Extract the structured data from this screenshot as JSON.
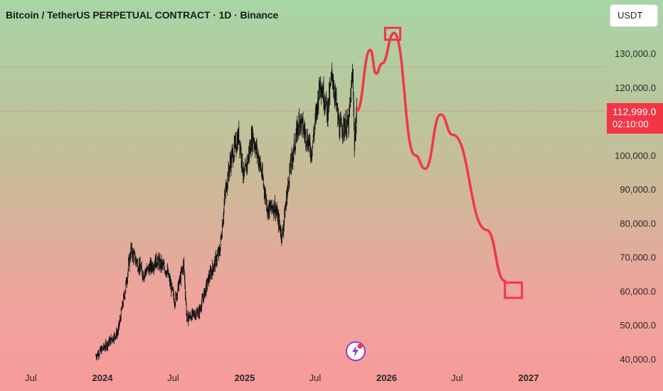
{
  "header": {
    "title": "Bitcoin / TetherUS PERPETUAL CONTRACT · 1D · Binance"
  },
  "toolbar": {
    "currency_label": "USDT"
  },
  "price_badge": {
    "price": "112,999.0",
    "countdown": "02:10:00"
  },
  "icons": {
    "notification": "lightning-icon"
  },
  "colors": {
    "candles": "#111111",
    "projection": "#f23645",
    "badge": "#f23645"
  },
  "chart_data": {
    "type": "candlestick",
    "title": "Bitcoin / TetherUS PERPETUAL CONTRACT · 1D · Binance",
    "ylim": [
      38000,
      138000
    ],
    "y_ticks": [
      {
        "value": 130000,
        "label": "130,000.0"
      },
      {
        "value": 120000,
        "label": "120,000.0"
      },
      {
        "value": 100000,
        "label": "100,000.0"
      },
      {
        "value": 90000,
        "label": "90,000.0"
      },
      {
        "value": 80000,
        "label": "80,000.0"
      },
      {
        "value": 70000,
        "label": "70,000.0"
      },
      {
        "value": 60000,
        "label": "60,000.0"
      },
      {
        "value": 50000,
        "label": "50,000.0"
      },
      {
        "value": 40000,
        "label": "40,000.0"
      }
    ],
    "x_ticks": [
      {
        "date": "2023-07",
        "label": "Jul",
        "bold": false
      },
      {
        "date": "2024-01",
        "label": "2024",
        "bold": true
      },
      {
        "date": "2024-07",
        "label": "Jul",
        "bold": false
      },
      {
        "date": "2025-01",
        "label": "2025",
        "bold": true
      },
      {
        "date": "2025-07",
        "label": "Jul",
        "bold": false
      },
      {
        "date": "2026-01",
        "label": "2026",
        "bold": true
      },
      {
        "date": "2026-07",
        "label": "Jul",
        "bold": false
      },
      {
        "date": "2027-01",
        "label": "2027",
        "bold": true
      }
    ],
    "price_path": [
      {
        "date": "2023-12-15",
        "close": 41000
      },
      {
        "date": "2024-01-10",
        "close": 44000
      },
      {
        "date": "2024-02-10",
        "close": 48000
      },
      {
        "date": "2024-02-28",
        "close": 60000
      },
      {
        "date": "2024-03-14",
        "close": 72000
      },
      {
        "date": "2024-04-15",
        "close": 65000
      },
      {
        "date": "2024-05-20",
        "close": 69000
      },
      {
        "date": "2024-06-15",
        "close": 66000
      },
      {
        "date": "2024-07-05",
        "close": 57000
      },
      {
        "date": "2024-07-28",
        "close": 68000
      },
      {
        "date": "2024-08-05",
        "close": 52000
      },
      {
        "date": "2024-09-06",
        "close": 54000
      },
      {
        "date": "2024-10-01",
        "close": 64000
      },
      {
        "date": "2024-10-29",
        "close": 72000
      },
      {
        "date": "2024-11-13",
        "close": 90000
      },
      {
        "date": "2024-11-25",
        "close": 98000
      },
      {
        "date": "2024-12-17",
        "close": 106000
      },
      {
        "date": "2024-12-30",
        "close": 93000
      },
      {
        "date": "2025-01-21",
        "close": 106000
      },
      {
        "date": "2025-02-10",
        "close": 97000
      },
      {
        "date": "2025-03-01",
        "close": 84000
      },
      {
        "date": "2025-03-20",
        "close": 85000
      },
      {
        "date": "2025-04-07",
        "close": 76000
      },
      {
        "date": "2025-04-25",
        "close": 94000
      },
      {
        "date": "2025-05-22",
        "close": 111000
      },
      {
        "date": "2025-06-22",
        "close": 101000
      },
      {
        "date": "2025-07-14",
        "close": 122000
      },
      {
        "date": "2025-08-02",
        "close": 113000
      },
      {
        "date": "2025-08-14",
        "close": 124000
      },
      {
        "date": "2025-09-01",
        "close": 108000
      },
      {
        "date": "2025-09-25",
        "close": 109000
      },
      {
        "date": "2025-10-06",
        "close": 125000
      },
      {
        "date": "2025-10-10",
        "close": 103000
      },
      {
        "date": "2025-10-16",
        "close": 112999
      }
    ],
    "projection": [
      {
        "date": "2025-10-16",
        "value": 112999
      },
      {
        "date": "2025-11-20",
        "value": 131000
      },
      {
        "date": "2025-12-05",
        "value": 124000
      },
      {
        "date": "2025-12-20",
        "value": 127000
      },
      {
        "date": "2026-01-20",
        "value": 136000
      },
      {
        "date": "2026-03-15",
        "value": 100000
      },
      {
        "date": "2026-04-10",
        "value": 96000
      },
      {
        "date": "2026-05-20",
        "value": 112000
      },
      {
        "date": "2026-06-20",
        "value": 106000
      },
      {
        "date": "2026-09-15",
        "value": 78000
      },
      {
        "date": "2026-11-01",
        "value": 63000
      }
    ],
    "boxes": [
      {
        "date_start": "2025-12-28",
        "date_end": "2026-02-05",
        "value_low": 134000,
        "value_high": 137500
      },
      {
        "date_start": "2026-11-01",
        "date_end": "2026-12-15",
        "value_low": 58000,
        "value_high": 62500
      }
    ],
    "horizontal_lines": [
      {
        "value": 126000,
        "style": "dotted",
        "color": "#cc6e66"
      },
      {
        "value": 112999,
        "style": "dotted",
        "color": "#e0636b"
      }
    ]
  }
}
